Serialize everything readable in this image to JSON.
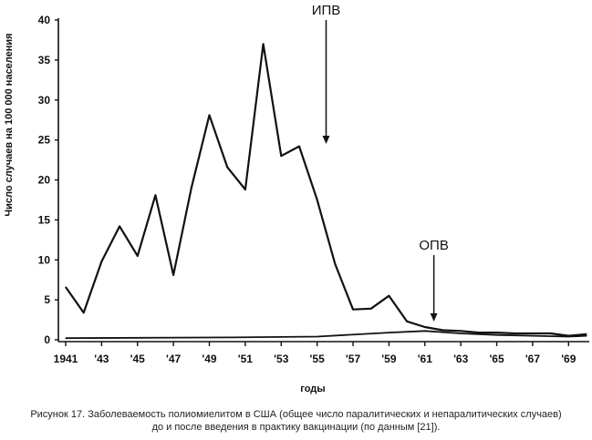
{
  "chart_data": {
    "type": "line",
    "title": "",
    "xlabel": "годы",
    "ylabel": "Число случаев на 100 000 населения",
    "ylim": [
      0,
      40
    ],
    "xlim": [
      1941,
      1970
    ],
    "yticks": [
      0,
      5,
      10,
      15,
      20,
      25,
      30,
      35,
      40
    ],
    "x_tick_values": [
      1941,
      1943,
      1945,
      1947,
      1949,
      1951,
      1953,
      1955,
      1957,
      1959,
      1961,
      1963,
      1965,
      1967,
      1969
    ],
    "x_tick_labels": [
      "1941",
      "'43",
      "'45",
      "'47",
      "'49",
      "'51",
      "'53",
      "'55",
      "'57",
      "'59",
      "'61",
      "'63",
      "'65",
      "'67",
      "'69"
    ],
    "series": [
      {
        "name": "total",
        "x": [
          1941,
          1942,
          1943,
          1944,
          1945,
          1946,
          1947,
          1948,
          1949,
          1950,
          1951,
          1952,
          1953,
          1954,
          1955,
          1956,
          1957,
          1958,
          1959,
          1960,
          1961,
          1962,
          1963,
          1964,
          1965,
          1966,
          1967,
          1968,
          1969,
          1970
        ],
        "y": [
          6.6,
          3.4,
          9.8,
          14.2,
          10.5,
          18.1,
          8.1,
          19.0,
          28.1,
          21.6,
          18.8,
          37.0,
          23.0,
          24.2,
          17.5,
          9.5,
          3.8,
          3.9,
          5.5,
          2.3,
          1.6,
          1.2,
          1.1,
          0.9,
          0.9,
          0.8,
          0.8,
          0.8,
          0.5,
          0.7
        ]
      },
      {
        "name": "paralytic",
        "x": [
          1941,
          1950,
          1955,
          1959,
          1961,
          1963,
          1965,
          1967,
          1969,
          1970
        ],
        "y": [
          0.2,
          0.3,
          0.4,
          0.9,
          1.1,
          0.8,
          0.6,
          0.5,
          0.4,
          0.5
        ]
      }
    ],
    "annotations": [
      {
        "label": "ИПВ",
        "x": 1955.5,
        "y": 24.5
      },
      {
        "label": "ОПВ",
        "x": 1961.5,
        "y": 2.3
      }
    ]
  },
  "caption": {
    "line1": "Рисунок 17. Заболеваемость полиомиелитом в США (общее число паралитических и непаралитических случаев)",
    "line2": "до и после введения в практику вакцинации (по данным [21])."
  }
}
